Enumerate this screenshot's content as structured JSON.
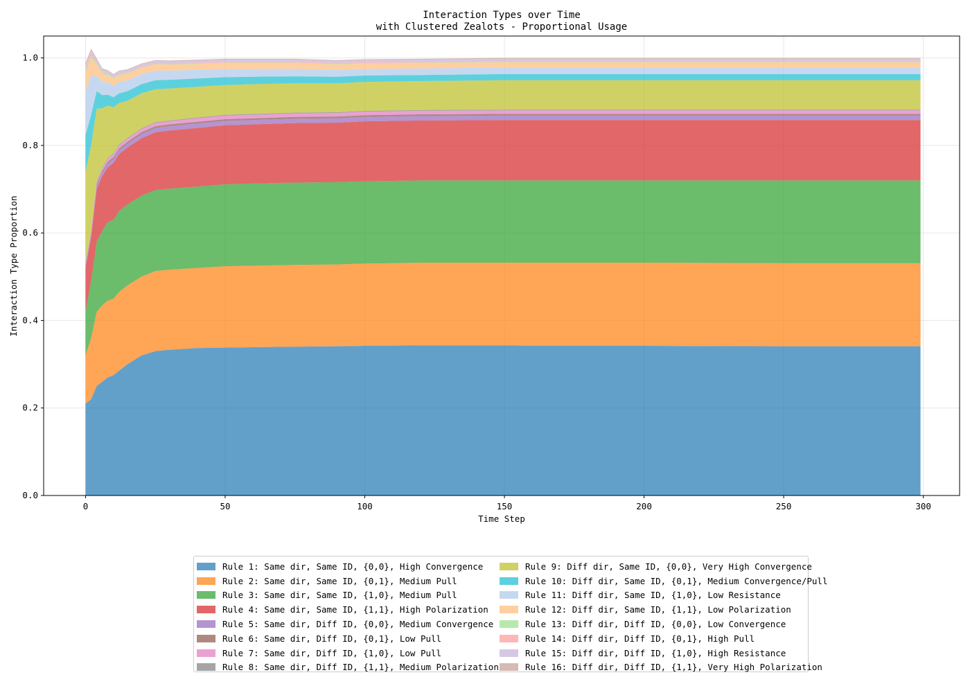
{
  "chart_data": {
    "type": "area",
    "stacked": true,
    "title": "Interaction Types over Time",
    "subtitle": "with Clustered Zealots - Proportional Usage",
    "xlabel": "Time Step",
    "ylabel": "Interaction Type Proportion",
    "xlim": [
      -15,
      313
    ],
    "ylim": [
      0,
      1.05
    ],
    "xticks": [
      0,
      50,
      100,
      150,
      200,
      250,
      300
    ],
    "yticks": [
      0.0,
      0.2,
      0.4,
      0.6,
      0.8,
      1.0
    ],
    "grid": true,
    "legend_position": "bottom-center",
    "x": [
      0,
      2,
      4,
      6,
      8,
      10,
      12,
      15,
      20,
      25,
      30,
      40,
      50,
      60,
      75,
      90,
      100,
      120,
      150,
      165,
      200,
      250,
      299
    ],
    "series": [
      {
        "name": "Rule 1: Same dir, Same ID, {0,0}, High Convergence",
        "color": "#1f77b4",
        "values": [
          0.21,
          0.22,
          0.25,
          0.26,
          0.27,
          0.275,
          0.285,
          0.3,
          0.32,
          0.33,
          0.333,
          0.337,
          0.338,
          0.339,
          0.34,
          0.341,
          0.342,
          0.343,
          0.343,
          0.342,
          0.342,
          0.341,
          0.341
        ]
      },
      {
        "name": "Rule 2: Same dir, Same ID, {0,1}, Medium Pull",
        "color": "#ff7f0e",
        "values": [
          0.11,
          0.14,
          0.17,
          0.175,
          0.175,
          0.175,
          0.18,
          0.18,
          0.18,
          0.183,
          0.183,
          0.183,
          0.186,
          0.186,
          0.187,
          0.187,
          0.188,
          0.189,
          0.189,
          0.19,
          0.19,
          0.19,
          0.19
        ]
      },
      {
        "name": "Rule 3: Same dir, Same ID, {1,0}, Medium Pull",
        "color": "#2ca02c",
        "values": [
          0.1,
          0.13,
          0.16,
          0.17,
          0.18,
          0.18,
          0.185,
          0.185,
          0.185,
          0.185,
          0.185,
          0.186,
          0.187,
          0.188,
          0.188,
          0.188,
          0.188,
          0.188,
          0.188,
          0.188,
          0.188,
          0.189,
          0.189
        ]
      },
      {
        "name": "Rule 4: Same dir, Same ID, {1,1}, High Polarization",
        "color": "#d62728",
        "values": [
          0.1,
          0.1,
          0.12,
          0.125,
          0.125,
          0.13,
          0.13,
          0.13,
          0.131,
          0.132,
          0.133,
          0.134,
          0.135,
          0.135,
          0.136,
          0.136,
          0.137,
          0.137,
          0.138,
          0.138,
          0.138,
          0.138,
          0.138
        ]
      },
      {
        "name": "Rule 5: Same dir, Diff ID, {0,0}, Medium Convergence",
        "color": "#9467bd",
        "values": [
          0.005,
          0.006,
          0.008,
          0.008,
          0.009,
          0.009,
          0.009,
          0.009,
          0.01,
          0.01,
          0.01,
          0.01,
          0.01,
          0.01,
          0.01,
          0.01,
          0.01,
          0.01,
          0.01,
          0.01,
          0.01,
          0.01,
          0.01
        ]
      },
      {
        "name": "Rule 6: Same dir, Diff ID, {0,1}, Low Pull",
        "color": "#8c564b",
        "values": [
          0.003,
          0.003,
          0.004,
          0.004,
          0.004,
          0.004,
          0.004,
          0.004,
          0.004,
          0.004,
          0.004,
          0.004,
          0.004,
          0.004,
          0.004,
          0.004,
          0.004,
          0.004,
          0.004,
          0.004,
          0.004,
          0.004,
          0.004
        ]
      },
      {
        "name": "Rule 7: Same dir, Diff ID, {1,0}, Low Pull",
        "color": "#e377c2",
        "values": [
          0.003,
          0.004,
          0.005,
          0.006,
          0.006,
          0.007,
          0.007,
          0.007,
          0.007,
          0.007,
          0.007,
          0.008,
          0.008,
          0.008,
          0.008,
          0.008,
          0.008,
          0.008,
          0.008,
          0.008,
          0.008,
          0.008,
          0.008
        ]
      },
      {
        "name": "Rule 8: Same dir, Diff ID, {1,1}, Medium Polarization",
        "color": "#7f7f7f",
        "values": [
          0.002,
          0.002,
          0.002,
          0.002,
          0.002,
          0.002,
          0.002,
          0.002,
          0.002,
          0.002,
          0.002,
          0.002,
          0.002,
          0.002,
          0.002,
          0.002,
          0.002,
          0.002,
          0.002,
          0.002,
          0.002,
          0.002,
          0.002
        ]
      },
      {
        "name": "Rule 9: Diff dir, Same ID, {0,0}, Very High Convergence",
        "color": "#bcbd22",
        "values": [
          0.206,
          0.195,
          0.165,
          0.135,
          0.12,
          0.105,
          0.095,
          0.085,
          0.08,
          0.075,
          0.073,
          0.07,
          0.068,
          0.068,
          0.067,
          0.066,
          0.066,
          0.066,
          0.067,
          0.067,
          0.067,
          0.067,
          0.067
        ]
      },
      {
        "name": "Rule 10: Diff dir, Same ID, {0,1}, Medium Convergence/Pull",
        "color": "#17becf",
        "values": [
          0.085,
          0.07,
          0.04,
          0.03,
          0.025,
          0.023,
          0.022,
          0.022,
          0.021,
          0.021,
          0.02,
          0.019,
          0.018,
          0.017,
          0.016,
          0.015,
          0.015,
          0.014,
          0.014,
          0.014,
          0.014,
          0.014,
          0.014
        ]
      },
      {
        "name": "Rule 11: Diff dir, Same ID, {1,0}, Low Resistance",
        "color": "#aec7e8",
        "values": [
          0.1,
          0.09,
          0.035,
          0.03,
          0.028,
          0.027,
          0.026,
          0.025,
          0.023,
          0.022,
          0.021,
          0.02,
          0.019,
          0.018,
          0.017,
          0.016,
          0.015,
          0.015,
          0.015,
          0.015,
          0.015,
          0.015,
          0.015
        ]
      },
      {
        "name": "Rule 12: Diff dir, Same ID, {1,1}, Low Polarization",
        "color": "#ffbb78",
        "values": [
          0.04,
          0.04,
          0.025,
          0.018,
          0.016,
          0.015,
          0.015,
          0.014,
          0.014,
          0.014,
          0.013,
          0.013,
          0.013,
          0.013,
          0.013,
          0.012,
          0.012,
          0.012,
          0.012,
          0.012,
          0.012,
          0.012,
          0.012
        ]
      },
      {
        "name": "Rule 13: Diff dir, Diff ID, {0,0}, Low Convergence",
        "color": "#98df8a",
        "values": [
          0.006,
          0.005,
          0.004,
          0.003,
          0.003,
          0.002,
          0.002,
          0.002,
          0.001,
          0.001,
          0.001,
          0.001,
          0.001,
          0.001,
          0.001,
          0.001,
          0.001,
          0.001,
          0.001,
          0.001,
          0.001,
          0.001,
          0.001
        ]
      },
      {
        "name": "Rule 14: Diff dir, Diff ID, {0,1}, High Pull",
        "color": "#ff9896",
        "values": [
          0.008,
          0.006,
          0.003,
          0.002,
          0.002,
          0.002,
          0.002,
          0.002,
          0.002,
          0.002,
          0.002,
          0.002,
          0.002,
          0.002,
          0.002,
          0.002,
          0.002,
          0.002,
          0.002,
          0.002,
          0.002,
          0.002,
          0.002
        ]
      },
      {
        "name": "Rule 15: Diff dir, Diff ID, {1,0}, High Resistance",
        "color": "#c5b0d5",
        "values": [
          0.006,
          0.006,
          0.005,
          0.005,
          0.005,
          0.005,
          0.005,
          0.005,
          0.005,
          0.005,
          0.005,
          0.005,
          0.005,
          0.005,
          0.005,
          0.005,
          0.005,
          0.005,
          0.005,
          0.005,
          0.005,
          0.005,
          0.005
        ]
      },
      {
        "name": "Rule 16: Diff dir, Diff ID, {1,1}, Very High Polarization",
        "color": "#c49c94",
        "values": [
          0.005,
          0.004,
          0.003,
          0.003,
          0.002,
          0.002,
          0.002,
          0.002,
          0.002,
          0.002,
          0.002,
          0.002,
          0.002,
          0.002,
          0.002,
          0.002,
          0.002,
          0.002,
          0.002,
          0.002,
          0.002,
          0.002,
          0.002
        ]
      }
    ]
  }
}
